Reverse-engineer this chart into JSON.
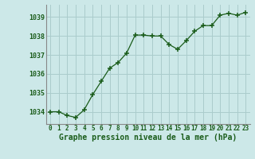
{
  "x": [
    0,
    1,
    2,
    3,
    4,
    5,
    6,
    7,
    8,
    9,
    10,
    11,
    12,
    13,
    14,
    15,
    16,
    17,
    18,
    19,
    20,
    21,
    22,
    23
  ],
  "y": [
    1034.0,
    1034.0,
    1033.8,
    1033.7,
    1034.1,
    1034.9,
    1035.6,
    1036.3,
    1036.6,
    1037.1,
    1038.05,
    1038.05,
    1038.0,
    1038.0,
    1037.55,
    1037.3,
    1037.75,
    1038.25,
    1038.55,
    1038.55,
    1039.1,
    1039.2,
    1039.1,
    1039.25
  ],
  "line_color": "#1a5c1a",
  "marker_color": "#1a5c1a",
  "bg_color": "#cce8e8",
  "grid_color": "#aacccc",
  "xlabel": "Graphe pression niveau de la mer (hPa)",
  "xlabel_color": "#1a5c1a",
  "ylabel_ticks": [
    1034,
    1035,
    1036,
    1037,
    1038,
    1039
  ],
  "ylim": [
    1033.35,
    1039.65
  ],
  "xlim": [
    -0.5,
    23.5
  ],
  "xticks": [
    0,
    1,
    2,
    3,
    4,
    5,
    6,
    7,
    8,
    9,
    10,
    11,
    12,
    13,
    14,
    15,
    16,
    17,
    18,
    19,
    20,
    21,
    22,
    23
  ],
  "tick_color": "#1a5c1a",
  "spine_color": "#888888",
  "tick_fontsize": 5.5,
  "ylabel_fontsize": 6.0,
  "xlabel_fontsize": 7.0
}
